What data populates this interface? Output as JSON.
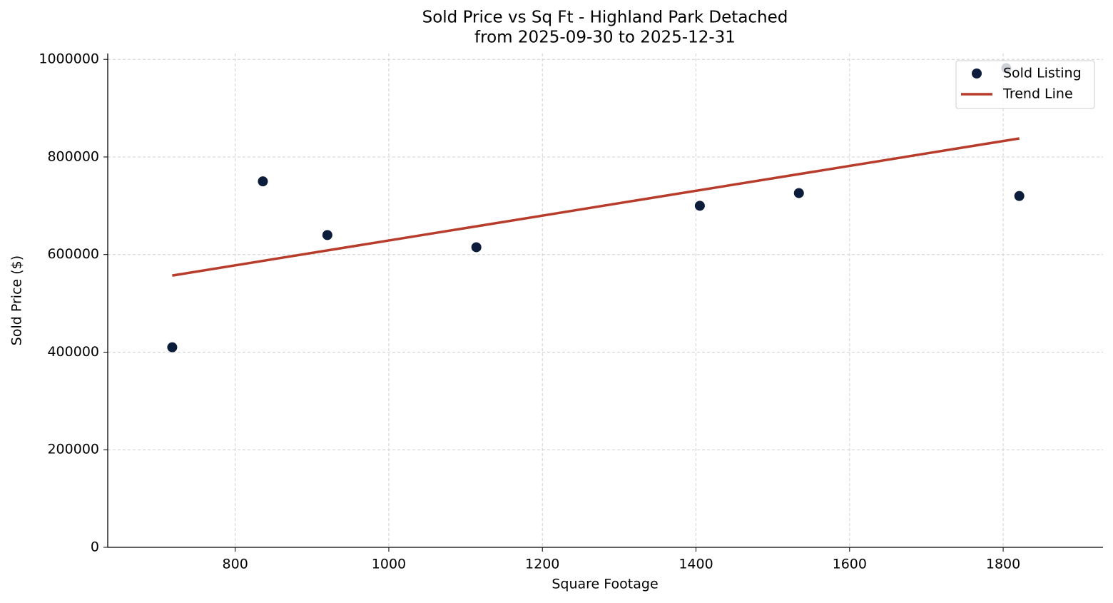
{
  "chart_data": {
    "type": "scatter",
    "title": "Sold Price vs Sq Ft - Highland Park Detached",
    "subtitle": "from 2025-09-30 to 2025-12-31",
    "x_label": "Square Footage",
    "y_label": "Sold Price ($)",
    "xlim": [
      634,
      1930
    ],
    "ylim": [
      0,
      1012000
    ],
    "xticks": [
      800,
      1000,
      1200,
      1400,
      1600,
      1800
    ],
    "yticks": [
      0,
      200000,
      400000,
      600000,
      800000,
      1000000
    ],
    "grid": true,
    "legend": "upper right",
    "series": [
      {
        "name": "Sold Listing",
        "color": "#0b1d3a",
        "style": "points",
        "x": [
          718,
          836,
          920,
          1114,
          1405,
          1534,
          1821,
          1804
        ],
        "values": [
          410000,
          750000,
          640000,
          615000,
          700000,
          726000,
          720000,
          982000
        ]
      },
      {
        "name": "Trend Line",
        "color": "#b83c2b",
        "style": "line",
        "x": [
          718,
          1821
        ],
        "values": [
          557000,
          838000
        ]
      }
    ]
  }
}
